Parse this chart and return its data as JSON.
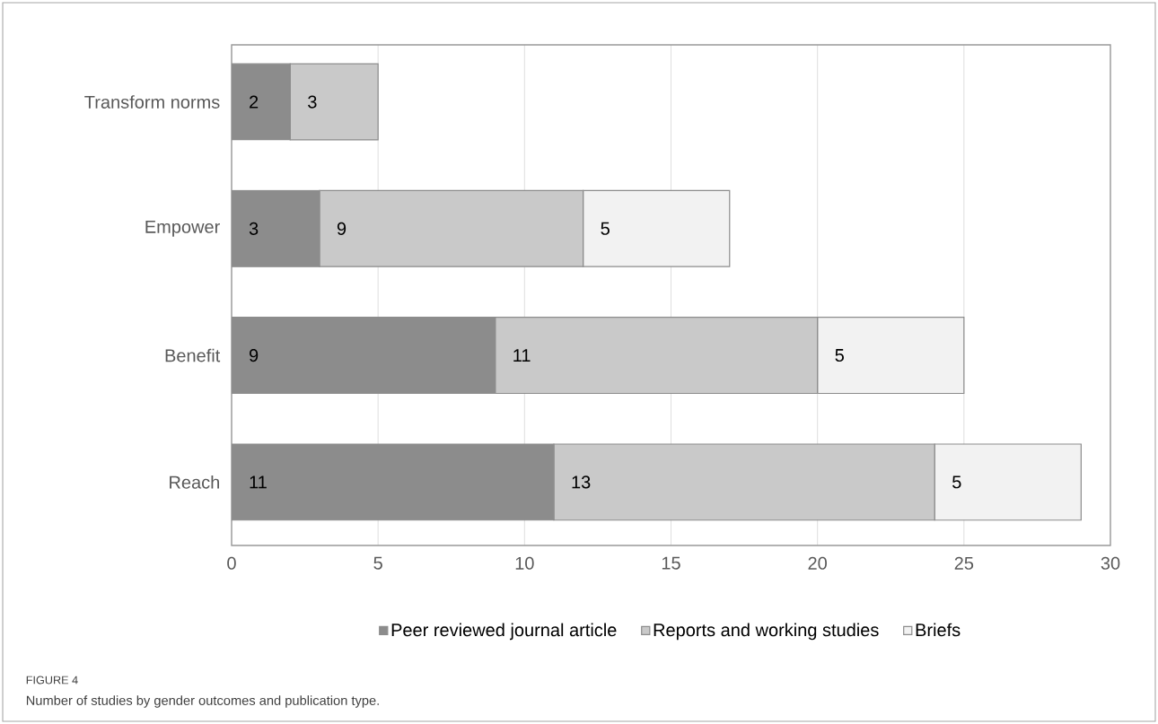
{
  "chart_data": {
    "type": "bar",
    "orientation": "horizontal",
    "stacked": true,
    "categories": [
      "Transform norms",
      "Empower",
      "Benefit",
      "Reach"
    ],
    "series": [
      {
        "name": "Peer reviewed journal article",
        "color": "#8c8c8c",
        "values": [
          2,
          3,
          9,
          11
        ]
      },
      {
        "name": "Reports and working studies",
        "color": "#c9c9c9",
        "values": [
          3,
          9,
          11,
          13
        ]
      },
      {
        "name": "Briefs",
        "color": "#f2f2f2",
        "values": [
          null,
          5,
          5,
          5
        ]
      }
    ],
    "xlim": [
      0,
      30
    ],
    "xticks": [
      0,
      5,
      10,
      15,
      20,
      25,
      30
    ],
    "grid": "x",
    "legend": "bottom",
    "data_labels": true,
    "annotations": [
      "FIGURE 4",
      "Number of studies by gender outcomes and publication type."
    ]
  }
}
